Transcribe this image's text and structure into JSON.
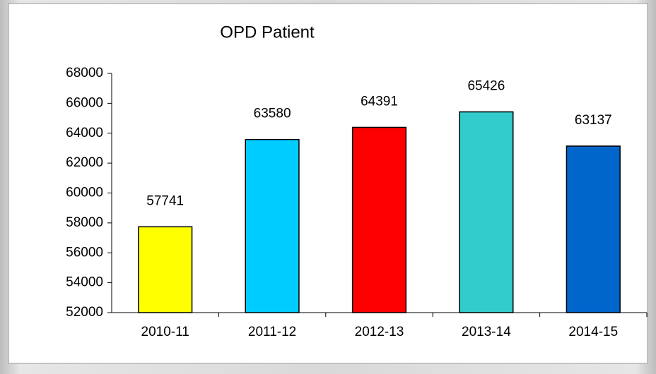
{
  "chart_data": {
    "type": "bar",
    "title": "OPD Patient",
    "categories": [
      "2010-11",
      "2011-12",
      "2012-13",
      "2013-14",
      "2014-15"
    ],
    "values": [
      57741,
      63580,
      64391,
      65426,
      63137
    ],
    "colors": [
      "#ffff00",
      "#00ccff",
      "#ff0000",
      "#33cccc",
      "#0066cc"
    ],
    "ylim": [
      52000,
      68000
    ],
    "yticks": [
      52000,
      54000,
      56000,
      58000,
      60000,
      62000,
      64000,
      66000,
      68000
    ]
  }
}
